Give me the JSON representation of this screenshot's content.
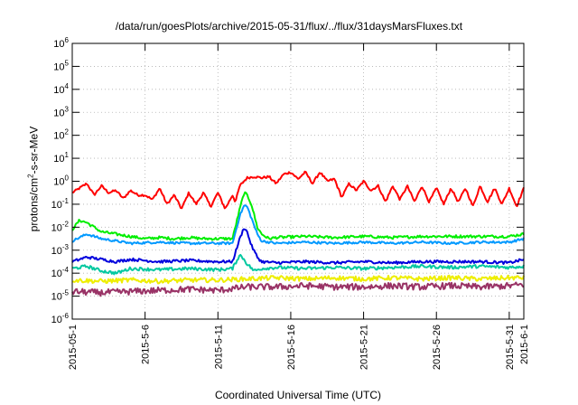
{
  "chart_data": {
    "type": "line",
    "title": "/data/run/goesPlots/archive/2015-05-31/flux/../flux/31daysMarsFluxes.txt",
    "xlabel": "Coordinated Universal Time (UTC)",
    "ylabel_parts": {
      "before": "protons/cm",
      "sup": "2",
      "after": "-s-sr-MeV"
    },
    "yscale": "log",
    "ylim": [
      1e-06,
      1000000.0
    ],
    "yticks": [
      {
        "exp": "-6"
      },
      {
        "exp": "-5"
      },
      {
        "exp": "-4"
      },
      {
        "exp": "-3"
      },
      {
        "exp": "-2"
      },
      {
        "exp": "-1"
      },
      {
        "exp": "0"
      },
      {
        "exp": "1"
      },
      {
        "exp": "2"
      },
      {
        "exp": "3"
      },
      {
        "exp": "4"
      },
      {
        "exp": "5"
      },
      {
        "exp": "6"
      }
    ],
    "ytick_base": "10",
    "xlim": [
      0,
      31
    ],
    "xticks": [
      {
        "day": 0,
        "label": "2015-05-1"
      },
      {
        "day": 5,
        "label": "2015-5-6"
      },
      {
        "day": 10,
        "label": "2015-5-11"
      },
      {
        "day": 15,
        "label": "2015-5-16"
      },
      {
        "day": 20,
        "label": "2015-5-21"
      },
      {
        "day": 25,
        "label": "2015-5-26"
      },
      {
        "day": 30,
        "label": "2015-5-31"
      },
      {
        "day": 31,
        "label": "2015-6-1"
      }
    ],
    "grid": true,
    "series": [
      {
        "color": "#ff0000",
        "log_points": [
          [
            0,
            -0.5
          ],
          [
            0.5,
            -0.3
          ],
          [
            1,
            -0.1
          ],
          [
            1.5,
            -0.6
          ],
          [
            2,
            -0.2
          ],
          [
            2.5,
            -0.5
          ],
          [
            3,
            -0.4
          ],
          [
            3.5,
            -0.75
          ],
          [
            4,
            -0.4
          ],
          [
            4.5,
            -0.6
          ],
          [
            5,
            -0.6
          ],
          [
            5.5,
            -0.8
          ],
          [
            6,
            -0.3
          ],
          [
            6.5,
            -1.0
          ],
          [
            7,
            -0.6
          ],
          [
            7.5,
            -1.2
          ],
          [
            8,
            -0.5
          ],
          [
            8.5,
            -1.0
          ],
          [
            9,
            -0.5
          ],
          [
            9.5,
            -1.1
          ],
          [
            10,
            -0.5
          ],
          [
            10.5,
            -1.2
          ],
          [
            11,
            -0.6
          ],
          [
            11.2,
            -0.9
          ],
          [
            11.5,
            -0.2
          ],
          [
            12,
            0.15
          ],
          [
            12.5,
            0.2
          ],
          [
            13,
            0.15
          ],
          [
            13.5,
            0.2
          ],
          [
            14,
            -0.1
          ],
          [
            14.5,
            0.3
          ],
          [
            15,
            0.4
          ],
          [
            15.5,
            0.1
          ],
          [
            16,
            0.4
          ],
          [
            16.5,
            -0.1
          ],
          [
            17,
            0.4
          ],
          [
            17.5,
            0.0
          ],
          [
            18,
            0.1
          ],
          [
            18.5,
            -0.7
          ],
          [
            19,
            -0.1
          ],
          [
            19.5,
            -0.4
          ],
          [
            20,
            0.0
          ],
          [
            20.5,
            -0.4
          ],
          [
            21,
            -0.2
          ],
          [
            21.5,
            -0.9
          ],
          [
            22,
            -0.2
          ],
          [
            22.5,
            -0.8
          ],
          [
            23,
            -0.2
          ],
          [
            23.5,
            -0.9
          ],
          [
            24,
            -0.2
          ],
          [
            24.5,
            -0.9
          ],
          [
            25,
            -0.3
          ],
          [
            25.5,
            -1.0
          ],
          [
            26,
            -0.3
          ],
          [
            26.5,
            -0.9
          ],
          [
            27,
            -0.3
          ],
          [
            27.5,
            -1.1
          ],
          [
            28,
            -0.2
          ],
          [
            28.5,
            -0.9
          ],
          [
            29,
            -0.3
          ],
          [
            29.5,
            -1.0
          ],
          [
            30,
            -0.3
          ],
          [
            30.5,
            -1.1
          ],
          [
            31,
            -0.3
          ]
        ]
      },
      {
        "color": "#00ee00",
        "log_points": [
          [
            0,
            -2.1
          ],
          [
            0.5,
            -1.7
          ],
          [
            1,
            -1.8
          ],
          [
            1.5,
            -2.0
          ],
          [
            2,
            -2.2
          ],
          [
            3,
            -2.3
          ],
          [
            4,
            -2.4
          ],
          [
            5,
            -2.5
          ],
          [
            6,
            -2.45
          ],
          [
            7,
            -2.5
          ],
          [
            8,
            -2.45
          ],
          [
            9,
            -2.5
          ],
          [
            10,
            -2.5
          ],
          [
            11,
            -2.5
          ],
          [
            11.5,
            -1.2
          ],
          [
            11.8,
            -0.5
          ],
          [
            12,
            -0.6
          ],
          [
            12.3,
            -1.0
          ],
          [
            12.7,
            -2.0
          ],
          [
            13,
            -2.3
          ],
          [
            13.5,
            -2.5
          ],
          [
            14,
            -2.45
          ],
          [
            16,
            -2.4
          ],
          [
            18,
            -2.45
          ],
          [
            20,
            -2.4
          ],
          [
            22,
            -2.45
          ],
          [
            24,
            -2.4
          ],
          [
            26,
            -2.4
          ],
          [
            28,
            -2.4
          ],
          [
            30,
            -2.4
          ],
          [
            31,
            -2.3
          ]
        ]
      },
      {
        "color": "#0099ff",
        "log_points": [
          [
            0,
            -2.6
          ],
          [
            1,
            -2.3
          ],
          [
            2,
            -2.5
          ],
          [
            3,
            -2.6
          ],
          [
            4,
            -2.7
          ],
          [
            6,
            -2.65
          ],
          [
            8,
            -2.7
          ],
          [
            10,
            -2.7
          ],
          [
            11,
            -2.7
          ],
          [
            11.5,
            -1.5
          ],
          [
            11.8,
            -1.05
          ],
          [
            12,
            -1.1
          ],
          [
            12.3,
            -1.6
          ],
          [
            12.7,
            -2.3
          ],
          [
            13,
            -2.6
          ],
          [
            14,
            -2.7
          ],
          [
            16,
            -2.65
          ],
          [
            18,
            -2.7
          ],
          [
            20,
            -2.65
          ],
          [
            22,
            -2.7
          ],
          [
            24,
            -2.65
          ],
          [
            26,
            -2.7
          ],
          [
            28,
            -2.65
          ],
          [
            30,
            -2.65
          ],
          [
            31,
            -2.5
          ]
        ]
      },
      {
        "color": "#0000dd",
        "log_points": [
          [
            0,
            -3.5
          ],
          [
            1,
            -3.3
          ],
          [
            2,
            -3.4
          ],
          [
            3,
            -3.5
          ],
          [
            4,
            -3.4
          ],
          [
            6,
            -3.5
          ],
          [
            8,
            -3.45
          ],
          [
            10,
            -3.5
          ],
          [
            11,
            -3.5
          ],
          [
            11.5,
            -2.5
          ],
          [
            11.8,
            -2.0
          ],
          [
            12,
            -2.2
          ],
          [
            12.3,
            -2.8
          ],
          [
            12.7,
            -3.3
          ],
          [
            13,
            -3.5
          ],
          [
            14,
            -3.55
          ],
          [
            16,
            -3.5
          ],
          [
            18,
            -3.55
          ],
          [
            20,
            -3.5
          ],
          [
            22,
            -3.55
          ],
          [
            24,
            -3.5
          ],
          [
            26,
            -3.5
          ],
          [
            28,
            -3.5
          ],
          [
            30,
            -3.55
          ],
          [
            31,
            -3.4
          ]
        ]
      },
      {
        "color": "#00c8a0",
        "log_points": [
          [
            0,
            -3.8
          ],
          [
            1,
            -3.7
          ],
          [
            2,
            -3.9
          ],
          [
            3,
            -4.0
          ],
          [
            4,
            -3.8
          ],
          [
            6,
            -3.85
          ],
          [
            8,
            -3.8
          ],
          [
            10,
            -3.85
          ],
          [
            11,
            -3.8
          ],
          [
            11.5,
            -3.2
          ],
          [
            11.8,
            -3.4
          ],
          [
            12,
            -3.6
          ],
          [
            12.5,
            -3.9
          ],
          [
            13,
            -3.8
          ],
          [
            14,
            -3.75
          ],
          [
            16,
            -3.8
          ],
          [
            18,
            -3.75
          ],
          [
            20,
            -3.8
          ],
          [
            22,
            -3.75
          ],
          [
            24,
            -3.7
          ],
          [
            26,
            -3.75
          ],
          [
            28,
            -3.7
          ],
          [
            30,
            -3.75
          ],
          [
            31,
            -3.7
          ]
        ]
      },
      {
        "color": "#eeee00",
        "log_points": [
          [
            0,
            -4.3
          ],
          [
            2,
            -4.35
          ],
          [
            4,
            -4.3
          ],
          [
            6,
            -4.35
          ],
          [
            8,
            -4.3
          ],
          [
            10,
            -4.3
          ],
          [
            12,
            -4.25
          ],
          [
            14,
            -4.2
          ],
          [
            16,
            -4.25
          ],
          [
            18,
            -4.2
          ],
          [
            20,
            -4.25
          ],
          [
            22,
            -4.2
          ],
          [
            24,
            -4.25
          ],
          [
            26,
            -4.2
          ],
          [
            28,
            -4.25
          ],
          [
            30,
            -4.2
          ],
          [
            31,
            -4.2
          ]
        ]
      },
      {
        "color": "#993366",
        "log_points": [
          [
            0,
            -4.8
          ],
          [
            2,
            -4.85
          ],
          [
            4,
            -4.8
          ],
          [
            6,
            -4.75
          ],
          [
            8,
            -4.7
          ],
          [
            10,
            -4.75
          ],
          [
            12,
            -4.6
          ],
          [
            14,
            -4.6
          ],
          [
            16,
            -4.55
          ],
          [
            18,
            -4.6
          ],
          [
            20,
            -4.6
          ],
          [
            22,
            -4.55
          ],
          [
            24,
            -4.6
          ],
          [
            26,
            -4.55
          ],
          [
            28,
            -4.6
          ],
          [
            30,
            -4.55
          ],
          [
            31,
            -4.5
          ]
        ]
      }
    ]
  }
}
